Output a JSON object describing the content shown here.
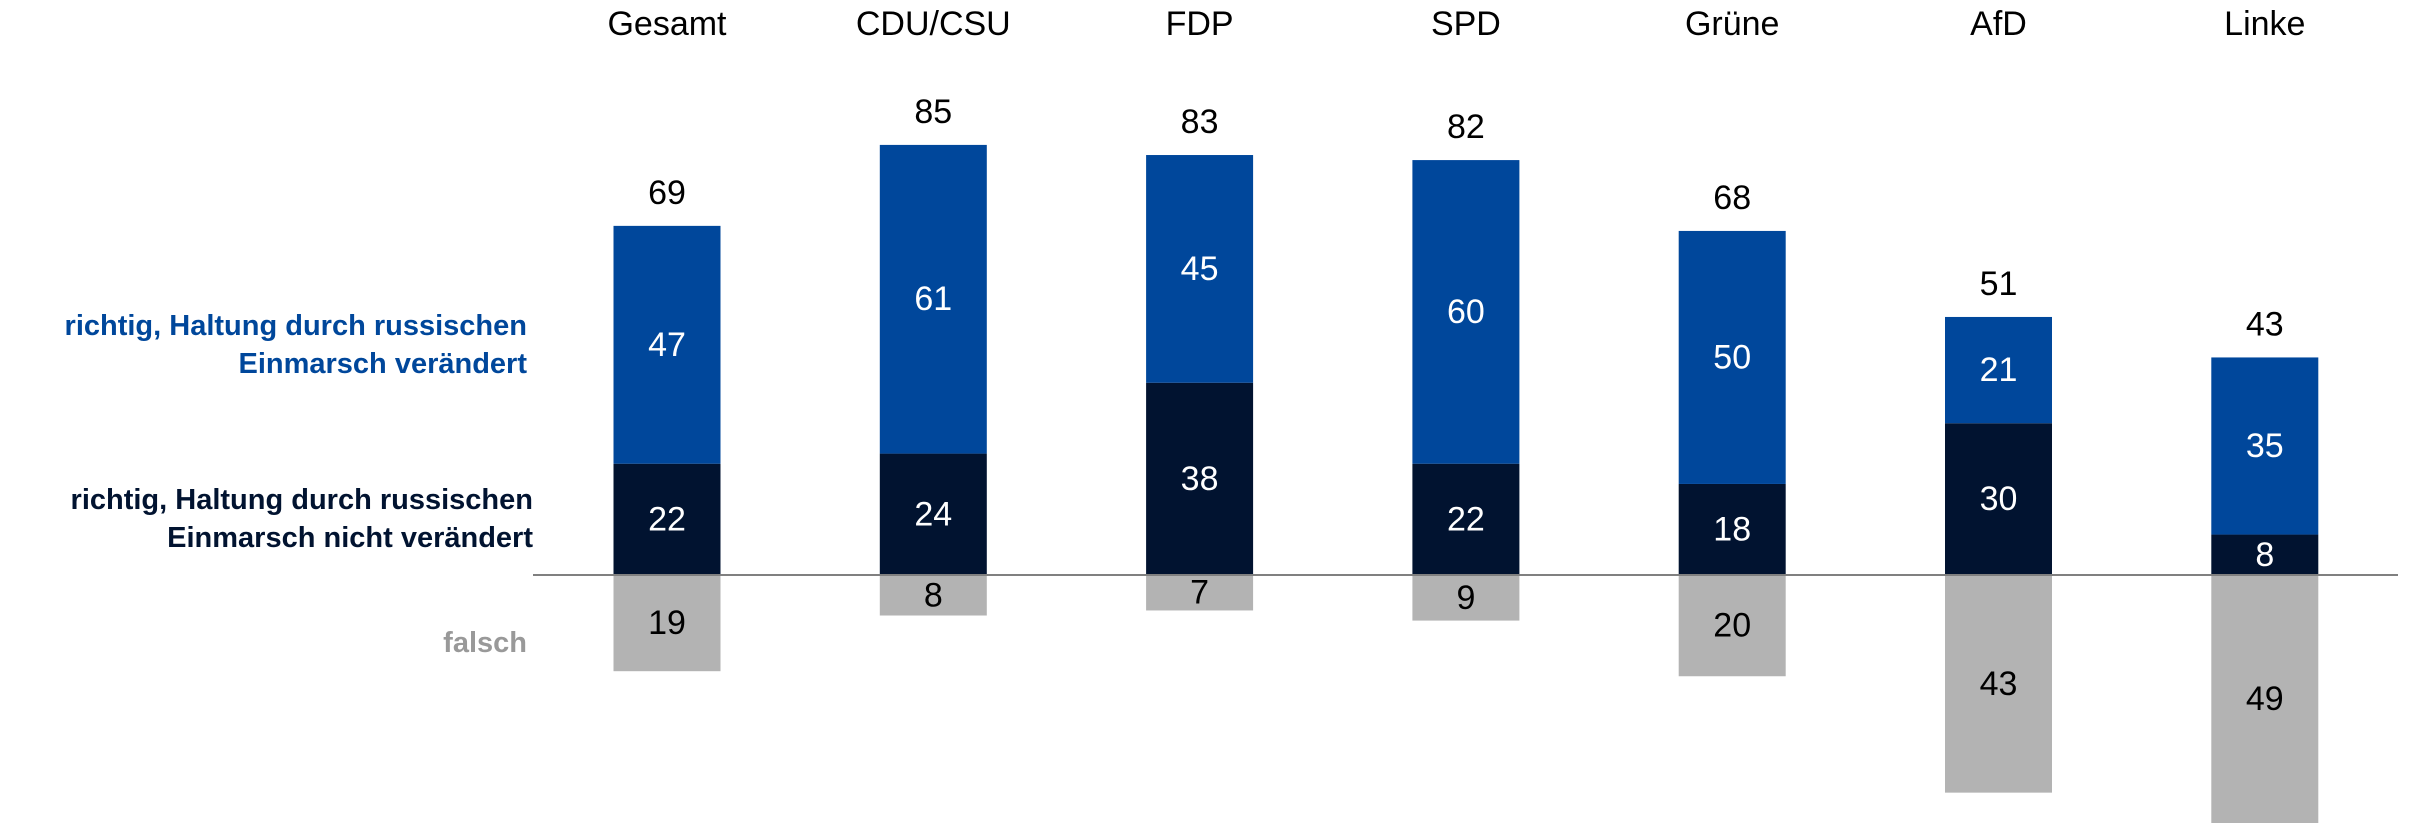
{
  "chart_data": {
    "type": "stacked_bar",
    "categories": [
      "Gesamt",
      "CDU/CSU",
      "FDP",
      "SPD",
      "Grüne",
      "AfD",
      "Linke"
    ],
    "series": [
      {
        "name": "richtig, Haltung durch russischen Einmarsch nicht verändert",
        "color": "#011330",
        "values": [
          22,
          24,
          38,
          22,
          18,
          30,
          8
        ]
      },
      {
        "name": "richtig, Haltung durch russischen Einmarsch verändert",
        "color": "#00479b",
        "values": [
          47,
          61,
          45,
          60,
          50,
          21,
          35
        ]
      },
      {
        "name": "falsch",
        "color": "#b3b3b3",
        "values": [
          -19,
          -8,
          -7,
          -9,
          -20,
          -43,
          -49
        ],
        "value_labels": [
          "19",
          "8",
          "7",
          "9",
          "20",
          "43",
          "49"
        ]
      }
    ],
    "totals": [
      69,
      85,
      83,
      82,
      68,
      51,
      43
    ],
    "ylim": [
      -49,
      100
    ]
  }
}
